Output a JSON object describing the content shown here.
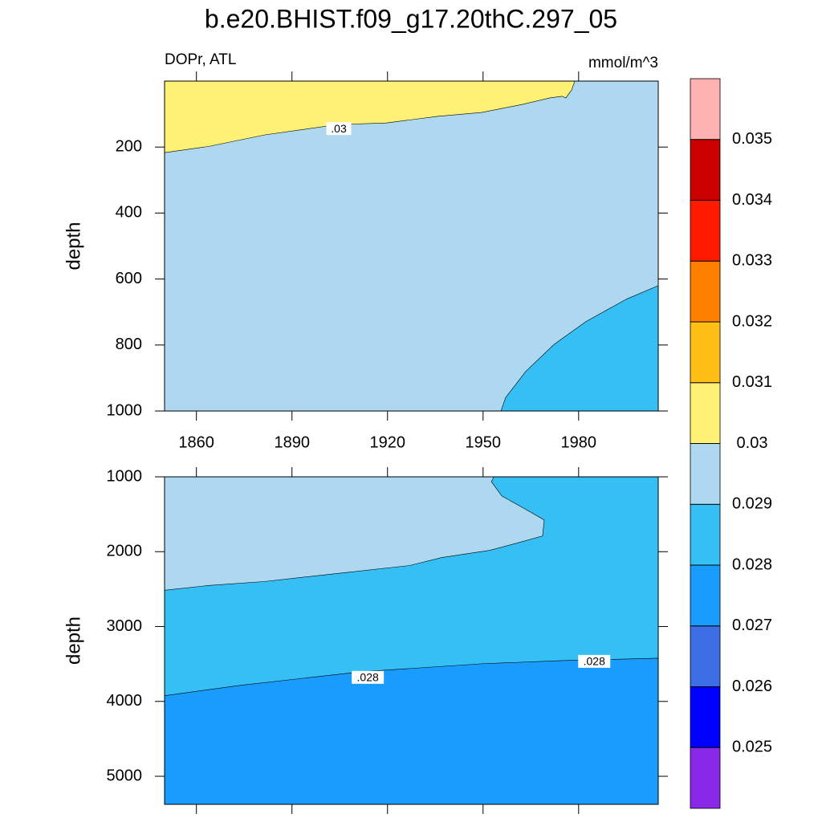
{
  "title": "b.e20.BHIST.f09_g17.20thC.297_05",
  "chart_data": [
    {
      "type": "contour",
      "subtitle_left": "DOPr, ATL",
      "subtitle_right": "mmol/m^3",
      "ylabel": "depth",
      "xlim": [
        1850,
        2005
      ],
      "ylim": [
        0,
        1000
      ],
      "y_inverted": true,
      "xticks": [
        1860,
        1890,
        1920,
        1950,
        1980
      ],
      "yticks": [
        200,
        400,
        600,
        800,
        1000
      ],
      "xtick_labels_shown": true,
      "background": "#add8f0",
      "regions": [
        {
          "color": "#fff176",
          "x": [
            1850,
            1863.9,
            1881.5,
            1904.2,
            1919.6,
            1935.7,
            1949.6,
            1962.2,
            1971,
            1974.8,
            1976,
            1977.8,
            1978.8,
            1850
          ],
          "y": [
            217,
            198,
            163,
            132,
            127,
            107,
            95,
            71,
            51,
            46,
            51,
            27,
            0,
            0
          ]
        },
        {
          "color": "#36bff5",
          "x": [
            1955.6,
            1957.1,
            1963.4,
            1972.3,
            1982.3,
            1995,
            2005,
            2005
          ],
          "y": [
            1000,
            959,
            880,
            798,
            729,
            661,
            620,
            1000
          ]
        }
      ],
      "contour_labels": [
        {
          "text": ".03",
          "x": 1904.7,
          "y": 144
        }
      ]
    },
    {
      "type": "contour",
      "ylabel": "depth",
      "xlim": [
        1850,
        2005
      ],
      "ylim": [
        1000,
        5375
      ],
      "y_inverted": true,
      "xticks": [
        1860,
        1890,
        1920,
        1950,
        1980
      ],
      "yticks": [
        1000,
        2000,
        3000,
        4000,
        5000
      ],
      "xtick_labels_shown": false,
      "background": "#36bff5",
      "regions": [
        {
          "color": "#add8f0",
          "x": [
            1850,
            1953.4,
            1952.6,
            1955.9,
            1962.2,
            1969.2,
            1968.7,
            1959.7,
            1952.1,
            1937,
            1926.9,
            1904.2,
            1881.5,
            1863.9,
            1850
          ],
          "y": [
            1000,
            1000,
            1064,
            1256,
            1406,
            1576,
            1790,
            1896,
            1982,
            2078,
            2185,
            2291,
            2398,
            2451,
            2515
          ]
        },
        {
          "color": "#1a9cff",
          "x": [
            1850,
            1873.9,
            1911.8,
            1949.6,
            1974.8,
            2005,
            2005,
            1850
          ],
          "y": [
            3924,
            3785,
            3604,
            3497,
            3455,
            3423,
            5375,
            5375
          ]
        }
      ],
      "contour_labels": [
        {
          "text": ".028",
          "x": 1913.8,
          "y": 3679
        },
        {
          "text": ".028",
          "x": 1984.9,
          "y": 3465
        }
      ]
    }
  ],
  "colorbar": {
    "colors": [
      "#8a28e8",
      "#0000ff",
      "#3d6ee6",
      "#1a9cff",
      "#36bff5",
      "#add8f0",
      "#fff176",
      "#ffbf14",
      "#ff7f00",
      "#ff1a00",
      "#cc0000",
      "#ffb2b2"
    ],
    "levels": [
      0.025,
      0.026,
      0.027,
      0.028,
      0.029,
      0.03,
      0.031,
      0.032,
      0.033,
      0.034,
      0.035
    ]
  }
}
